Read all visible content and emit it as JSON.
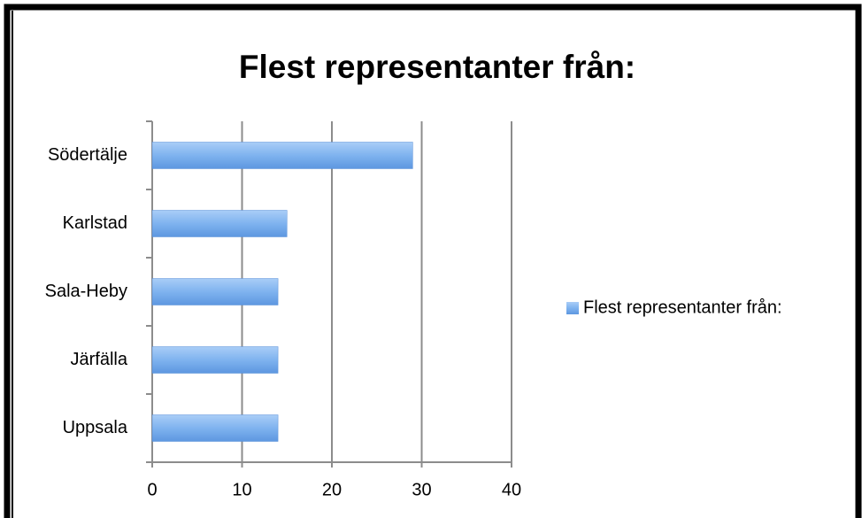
{
  "chart_data": {
    "type": "barh",
    "title": "Flest representanter från:",
    "categories": [
      "Södertälje",
      "Karlstad",
      "Sala-Heby",
      "Järfälla",
      "Uppsala"
    ],
    "series": [
      {
        "name": "Flest representanter från:",
        "color": "#6ea6ea",
        "values": [
          29,
          15,
          14,
          14,
          14
        ]
      }
    ],
    "xlim": [
      0,
      40
    ],
    "xticks": [
      0,
      10,
      20,
      30,
      40
    ],
    "grid": true,
    "legend": "right"
  }
}
